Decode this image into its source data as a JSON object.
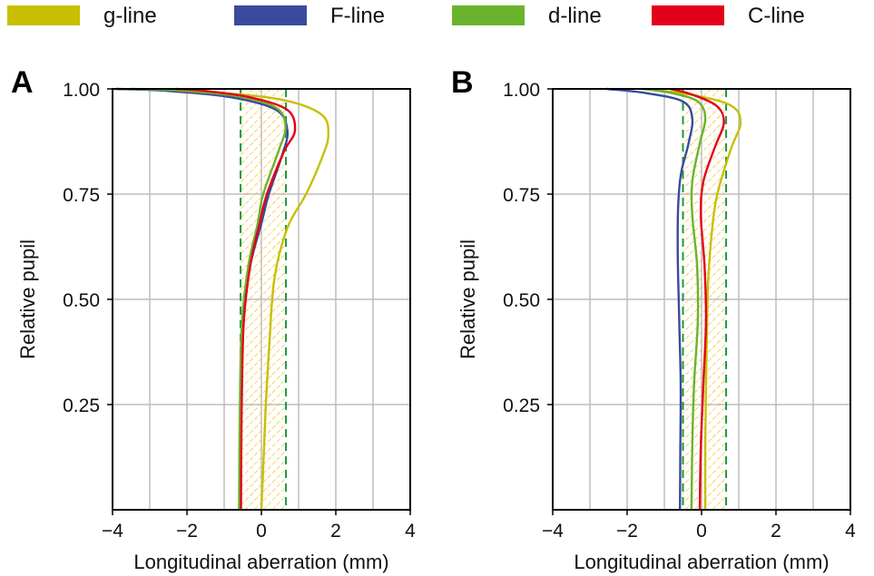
{
  "chart_data": {
    "type": "line",
    "legend": {
      "placement": "top",
      "entries": [
        {
          "name": "g-line",
          "color": "#c8bf00"
        },
        {
          "name": "F-line",
          "color": "#3a4a9c"
        },
        {
          "name": "d-line",
          "color": "#6ab42d"
        },
        {
          "name": "C-line",
          "color": "#e3001b"
        }
      ]
    },
    "panels": [
      {
        "label": "A",
        "xlabel": "Longitudinal aberration (mm)",
        "ylabel": "Relative pupil",
        "xlim": [
          -4,
          4
        ],
        "ylim": [
          0,
          1
        ],
        "xticks": [
          "−4",
          "−2",
          "0",
          "2",
          "4"
        ],
        "xtick_values": [
          -4,
          -2,
          0,
          2,
          4
        ],
        "yticks": [
          "0.25",
          "0.50",
          "0.75",
          "1.00"
        ],
        "ytick_values": [
          0.25,
          0.5,
          0.75,
          1.0
        ],
        "grid": true,
        "tolerance_band": [
          -0.56,
          0.66
        ],
        "series": [
          {
            "name": "g-line",
            "points": [
              [
                0,
                0
              ],
              [
                0.05,
                0.1
              ],
              [
                0.12,
                0.25
              ],
              [
                0.22,
                0.4
              ],
              [
                0.35,
                0.55
              ],
              [
                0.7,
                0.67
              ],
              [
                1.2,
                0.75
              ],
              [
                1.6,
                0.83
              ],
              [
                1.8,
                0.89
              ],
              [
                1.6,
                0.94
              ],
              [
                0.5,
                0.975
              ],
              [
                -1.5,
                0.993
              ],
              [
                -3.9,
                1.0
              ]
            ]
          },
          {
            "name": "F-line",
            "points": [
              [
                -0.58,
                0
              ],
              [
                -0.57,
                0.15
              ],
              [
                -0.55,
                0.3
              ],
              [
                -0.48,
                0.45
              ],
              [
                -0.3,
                0.58
              ],
              [
                0.0,
                0.68
              ],
              [
                0.2,
                0.75
              ],
              [
                0.55,
                0.84
              ],
              [
                0.7,
                0.9
              ],
              [
                0.4,
                0.95
              ],
              [
                -0.8,
                0.98
              ],
              [
                -2.5,
                0.995
              ],
              [
                -3.9,
                1.0
              ]
            ]
          },
          {
            "name": "d-line",
            "points": [
              [
                -0.6,
                0
              ],
              [
                -0.59,
                0.15
              ],
              [
                -0.57,
                0.3
              ],
              [
                -0.52,
                0.45
              ],
              [
                -0.35,
                0.58
              ],
              [
                -0.1,
                0.68
              ],
              [
                0.05,
                0.75
              ],
              [
                0.45,
                0.85
              ],
              [
                0.65,
                0.91
              ],
              [
                0.4,
                0.955
              ],
              [
                -0.6,
                0.982
              ],
              [
                -2.2,
                0.996
              ],
              [
                -3.5,
                1.0
              ]
            ]
          },
          {
            "name": "C-line",
            "points": [
              [
                -0.55,
                0
              ],
              [
                -0.54,
                0.15
              ],
              [
                -0.52,
                0.3
              ],
              [
                -0.47,
                0.45
              ],
              [
                -0.3,
                0.58
              ],
              [
                -0.05,
                0.68
              ],
              [
                0.15,
                0.75
              ],
              [
                0.6,
                0.85
              ],
              [
                0.9,
                0.9
              ],
              [
                0.7,
                0.95
              ],
              [
                -0.3,
                0.98
              ],
              [
                -1.5,
                0.995
              ],
              [
                -2.3,
                1.0
              ]
            ]
          }
        ]
      },
      {
        "label": "B",
        "xlabel": "Longitudinal aberration (mm)",
        "ylabel": "Relative pupil",
        "xlim": [
          -4,
          4
        ],
        "ylim": [
          0,
          1
        ],
        "xticks": [
          "−4",
          "−2",
          "0",
          "2",
          "4"
        ],
        "xtick_values": [
          -4,
          -2,
          0,
          2,
          4
        ],
        "yticks": [
          "0.25",
          "0.50",
          "0.75",
          "1.00"
        ],
        "ytick_values": [
          0.25,
          0.5,
          0.75,
          1.0
        ],
        "grid": true,
        "tolerance_band": [
          -0.5,
          0.66
        ],
        "series": [
          {
            "name": "g-line",
            "points": [
              [
                0.1,
                0
              ],
              [
                0.1,
                0.15
              ],
              [
                0.12,
                0.3
              ],
              [
                0.15,
                0.45
              ],
              [
                0.18,
                0.55
              ],
              [
                0.3,
                0.68
              ],
              [
                0.45,
                0.76
              ],
              [
                0.8,
                0.86
              ],
              [
                1.05,
                0.92
              ],
              [
                0.8,
                0.96
              ],
              [
                -0.2,
                0.985
              ],
              [
                -1.5,
                1.0
              ]
            ]
          },
          {
            "name": "F-line",
            "points": [
              [
                -0.58,
                0
              ],
              [
                -0.57,
                0.15
              ],
              [
                -0.56,
                0.3
              ],
              [
                -0.6,
                0.45
              ],
              [
                -0.64,
                0.6
              ],
              [
                -0.63,
                0.72
              ],
              [
                -0.55,
                0.8
              ],
              [
                -0.35,
                0.87
              ],
              [
                -0.25,
                0.93
              ],
              [
                -0.5,
                0.97
              ],
              [
                -1.5,
                0.99
              ],
              [
                -2.55,
                1.0
              ]
            ]
          },
          {
            "name": "d-line",
            "points": [
              [
                -0.27,
                0
              ],
              [
                -0.25,
                0.15
              ],
              [
                -0.2,
                0.3
              ],
              [
                -0.1,
                0.45
              ],
              [
                -0.12,
                0.58
              ],
              [
                -0.25,
                0.7
              ],
              [
                -0.25,
                0.78
              ],
              [
                -0.05,
                0.87
              ],
              [
                0.1,
                0.93
              ],
              [
                -0.1,
                0.97
              ],
              [
                -0.8,
                0.99
              ],
              [
                -1.6,
                1.0
              ]
            ]
          },
          {
            "name": "C-line",
            "points": [
              [
                -0.05,
                0
              ],
              [
                -0.02,
                0.15
              ],
              [
                0.05,
                0.3
              ],
              [
                0.12,
                0.45
              ],
              [
                0.08,
                0.58
              ],
              [
                -0.02,
                0.7
              ],
              [
                0.05,
                0.78
              ],
              [
                0.35,
                0.86
              ],
              [
                0.6,
                0.92
              ],
              [
                0.4,
                0.96
              ],
              [
                -0.3,
                0.988
              ],
              [
                -0.85,
                1.0
              ]
            ]
          }
        ]
      }
    ]
  }
}
